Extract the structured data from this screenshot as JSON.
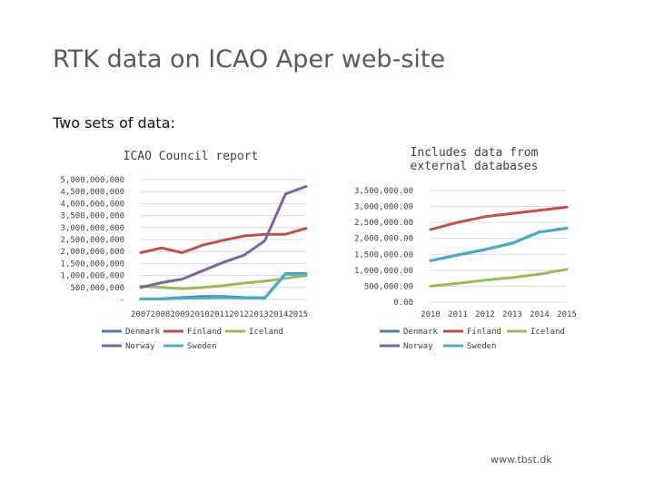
{
  "slide": {
    "title": "RTK data on ICAO Aper web-site",
    "subtitle": "Two sets of data:",
    "footer": "www.tbst.dk"
  },
  "colors": {
    "Denmark": "#4a7eb5",
    "Finland": "#bf504d",
    "Iceland": "#9bbb59",
    "Norway": "#7f63a1",
    "Sweden": "#4bacc6"
  },
  "chart_data": [
    {
      "type": "line",
      "title": "ICAO Council report",
      "x": [
        "2007",
        "2008",
        "2009",
        "2010",
        "2011",
        "2012",
        "2013",
        "2014",
        "2015"
      ],
      "ylim": [
        0,
        5000000000
      ],
      "yticks": [
        "5,000,000,000",
        "4,500,000,000",
        "4,000,000,000",
        "3,500,000,000",
        "3,000,000,000",
        "2,500,000,000",
        "2,000,000,000",
        "1,500,000,000",
        "1,000,000,000",
        "500,000,000",
        "-"
      ],
      "xtick_text": "2007200820092010201120122013201420​15",
      "grid": true,
      "legend": "bottom",
      "series": [
        {
          "name": "Denmark",
          "values": [
            30000000,
            30000000,
            80000000,
            120000000,
            120000000,
            80000000,
            70000000,
            1080000000,
            1080000000
          ]
        },
        {
          "name": "Finland",
          "values": [
            1950000000,
            2150000000,
            1950000000,
            2270000000,
            2470000000,
            2650000000,
            2720000000,
            2720000000,
            2970000000
          ]
        },
        {
          "name": "Iceland",
          "values": [
            560000000,
            500000000,
            450000000,
            500000000,
            580000000,
            680000000,
            760000000,
            880000000,
            1000000000
          ]
        },
        {
          "name": "Norway",
          "values": [
            500000000,
            700000000,
            850000000,
            1200000000,
            1550000000,
            1850000000,
            2450000000,
            4400000000,
            4720000000
          ]
        },
        {
          "name": "Sweden",
          "values": [
            20000000,
            20000000,
            50000000,
            70000000,
            80000000,
            60000000,
            50000000,
            1050000000,
            1050000000
          ]
        }
      ]
    },
    {
      "type": "line",
      "title": "Includes data from external databases",
      "x": [
        "2010",
        "2011",
        "2012",
        "2013",
        "2014",
        "2015"
      ],
      "ylim": [
        0,
        3500000
      ],
      "yticks": [
        "3,500,000.00",
        "3,000,000.00",
        "2,500,000.00",
        "2,000,000.00",
        "1,500,000.00",
        "1,000,000.00",
        "500,000.00",
        "0.00"
      ],
      "grid": true,
      "legend": "bottom",
      "series": [
        {
          "name": "Denmark",
          "values": [
            1300000,
            1480000,
            1650000,
            1850000,
            2200000,
            2320000
          ]
        },
        {
          "name": "Finland",
          "values": [
            2280000,
            2500000,
            2680000,
            2780000,
            2880000,
            2980000
          ]
        },
        {
          "name": "Iceland",
          "values": [
            500000,
            590000,
            690000,
            770000,
            880000,
            1030000
          ]
        },
        {
          "name": "Norway",
          "values": [
            1300000,
            1480000,
            1650000,
            1850000,
            2200000,
            2320000
          ]
        },
        {
          "name": "Sweden",
          "values": [
            1300000,
            1480000,
            1650000,
            1850000,
            2200000,
            2320000
          ]
        }
      ]
    }
  ]
}
